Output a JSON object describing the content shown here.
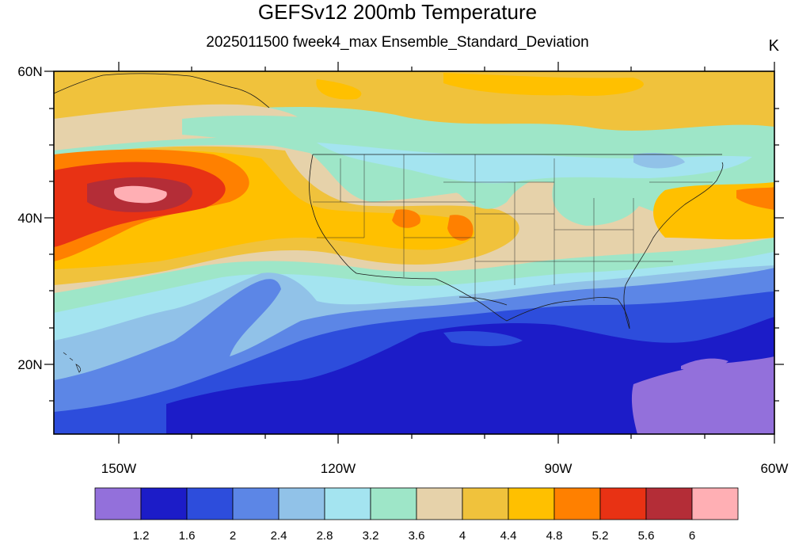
{
  "title": "GEFSv12 200mb Temperature",
  "subtitle": "2025011500 fweek4_max Ensemble_Standard_Deviation",
  "units": "K",
  "map": {
    "lon_range": [
      -160,
      -60
    ],
    "lat_range": [
      10,
      60
    ],
    "lat_labels": [
      "60N",
      "40N",
      "20N"
    ],
    "lon_labels": [
      "150W",
      "120W",
      "90W",
      "60W"
    ]
  },
  "colorbar": {
    "labels": [
      "1.2",
      "1.6",
      "2",
      "2.4",
      "2.8",
      "3.2",
      "3.6",
      "4",
      "4.4",
      "4.8",
      "5.2",
      "5.6",
      "6"
    ],
    "colors": [
      "#9370db",
      "#1c1cc8",
      "#2d4ddc",
      "#5c86e6",
      "#91c2e8",
      "#a4e4f0",
      "#9ee6c8",
      "#e6d2aa",
      "#f0c23c",
      "#ffc000",
      "#ff8000",
      "#e83214",
      "#b42d37",
      "#ffafb4"
    ]
  }
}
